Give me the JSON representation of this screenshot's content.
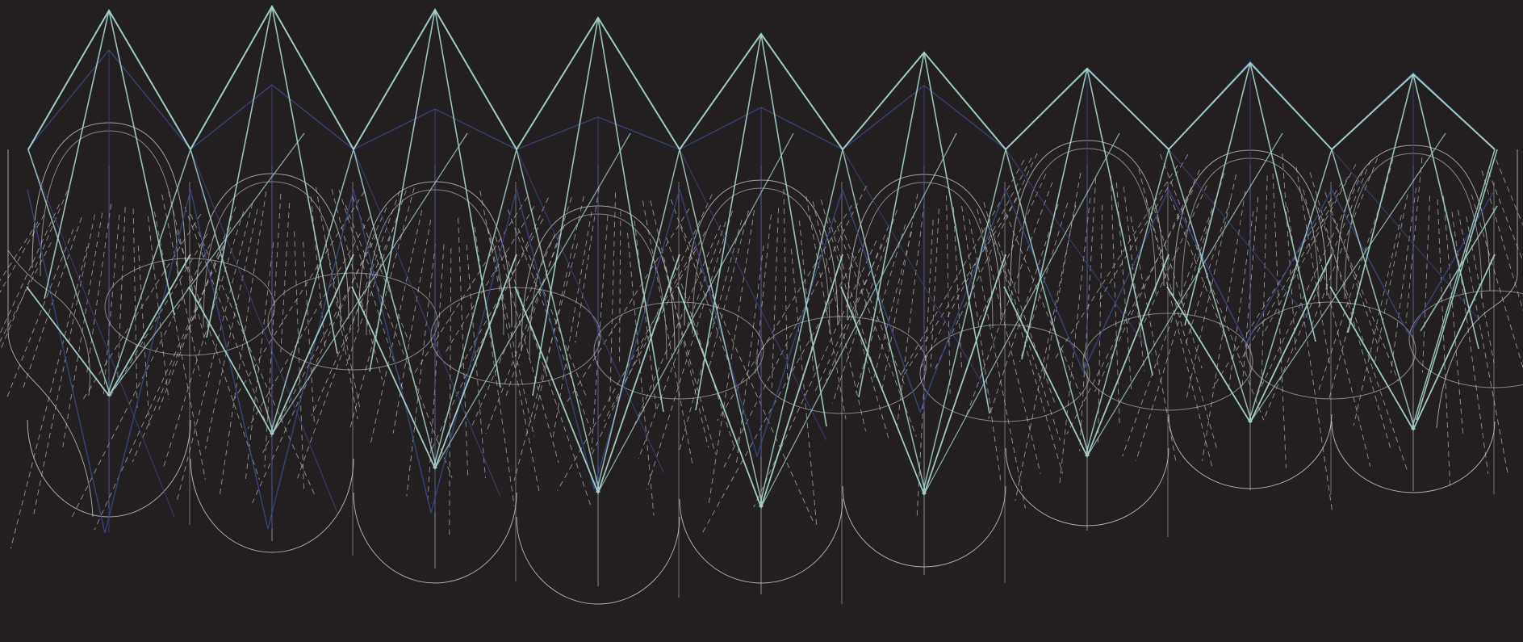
{
  "artwork": {
    "title": "",
    "colors": {
      "background": "#231f20",
      "teal_line": "#a8d5cc",
      "navy_line": "#3a4a8c",
      "white_arc": "#d8d8d8",
      "dash_line": "#cfcfcf"
    },
    "motif_count": 9
  }
}
